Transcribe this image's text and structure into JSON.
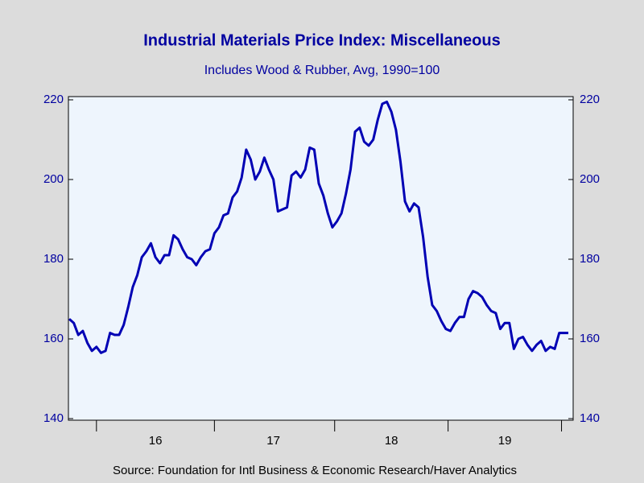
{
  "chart_data": {
    "type": "line",
    "title": "Industrial Materials Price Index: Miscellaneous",
    "subtitle": "Includes Wood & Rubber, Avg, 1990=100",
    "source": "Source:  Foundation for Intl Business & Economic Research/Haver Analytics",
    "categories": [
      null,
      null,
      null,
      null,
      null,
      null,
      null,
      null,
      null,
      null,
      null,
      null,
      null,
      null,
      null,
      null,
      null,
      null,
      null,
      "16",
      null,
      null,
      null,
      null,
      null,
      null,
      null,
      null,
      null,
      null,
      null,
      null,
      null,
      null,
      null,
      null,
      null,
      null,
      null,
      null,
      null,
      null,
      null,
      null,
      null,
      "17",
      null,
      null,
      null,
      null,
      null,
      null,
      null,
      null,
      null,
      null,
      null,
      null,
      null,
      null,
      null,
      null,
      null,
      null,
      null,
      null,
      null,
      null,
      null,
      null,
      null,
      "18",
      null,
      null,
      null,
      null,
      null,
      null,
      null,
      null,
      null,
      null,
      null,
      null,
      null,
      null,
      null,
      null,
      null,
      null,
      null,
      null,
      null,
      null,
      null,
      null,
      "19",
      null,
      null,
      null,
      null,
      null,
      null,
      null,
      null,
      null,
      null,
      null,
      null,
      null,
      null
    ],
    "series": [
      {
        "color": "#0000b4",
        "values": [
          165,
          164,
          161,
          162,
          159,
          157,
          158,
          156.5,
          157,
          161.5,
          161,
          161,
          163.5,
          168,
          173,
          176,
          180.5,
          182,
          184,
          180.5,
          179,
          181,
          181,
          186,
          185,
          182.5,
          180.5,
          180,
          178.5,
          180.5,
          182,
          182.5,
          186.5,
          188,
          191,
          191.5,
          195.5,
          197,
          200.5,
          207.5,
          205,
          200,
          202,
          205.5,
          202.5,
          200,
          192,
          192.5,
          193,
          201,
          202,
          200.5,
          202.5,
          208,
          207.5,
          199,
          196,
          191.5,
          188,
          189.5,
          191.5,
          196.5,
          202.5,
          212,
          213,
          209.5,
          208.5,
          210,
          215,
          219,
          219.5,
          217,
          212.5,
          204.5,
          194.5,
          192,
          194,
          193,
          185.5,
          175.5,
          168.5,
          167,
          164.5,
          162.5,
          162,
          164,
          165.5,
          165.5,
          170,
          172,
          171.5,
          170.5,
          168.5,
          167,
          166.5,
          162.5,
          164,
          164,
          157.5,
          160,
          160.5,
          158.5,
          157,
          158.5,
          159.5,
          157,
          158,
          157.5,
          161.5,
          161.5,
          161.5
        ]
      }
    ],
    "ylim": [
      140,
      220
    ],
    "yticks": [
      140,
      160,
      180,
      200,
      220
    ],
    "y2lim": [
      140,
      220
    ],
    "y2ticks": [
      140,
      160,
      180,
      200,
      220
    ]
  }
}
